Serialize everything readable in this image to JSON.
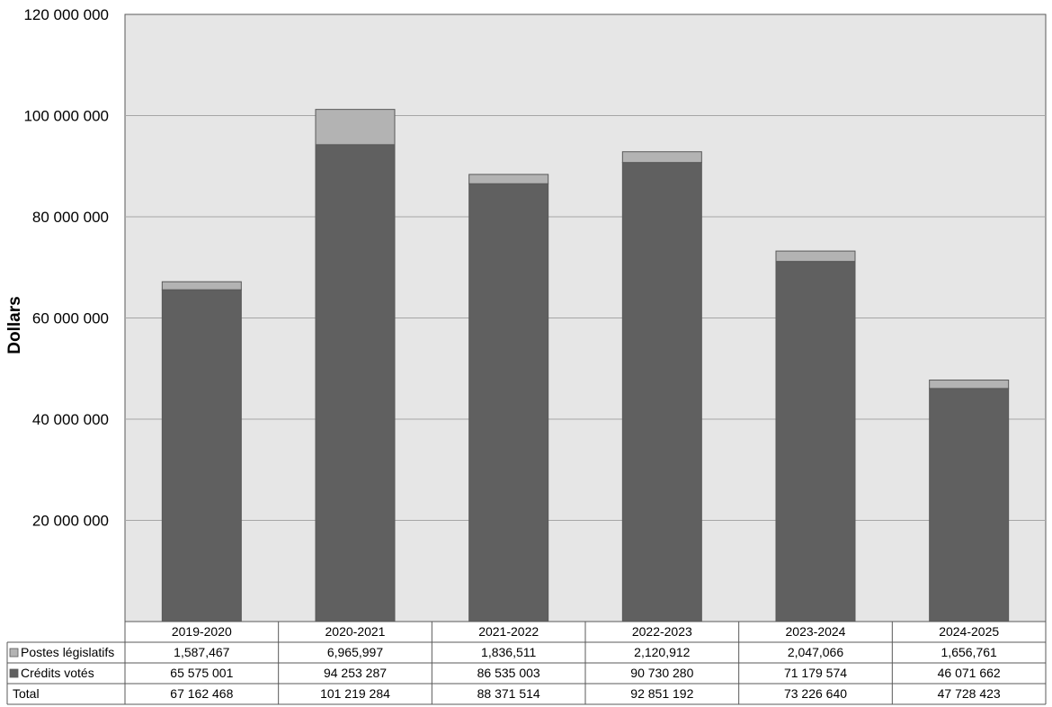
{
  "colors": {
    "plot_background": "#e6e6e6",
    "gridline": "#a6a6a6",
    "statutory": "#b3b3b3",
    "voted": "#606060",
    "border": "#595959"
  },
  "chart_data": {
    "type": "bar",
    "stacked": true,
    "categories": [
      "2019-2020",
      "2020-2021",
      "2021-2022",
      "2022-2023",
      "2023-2024",
      "2024-2025"
    ],
    "ylabel": "Dollars",
    "ylim": [
      0,
      120000000
    ],
    "yticks": [
      20000000,
      40000000,
      60000000,
      80000000,
      100000000,
      120000000
    ],
    "ytick_labels": [
      "20 000 000",
      "40 000 000",
      "60 000 000",
      "80 000 000",
      "100 000 000",
      "120 000 000"
    ],
    "grid": true,
    "series": [
      {
        "name": "Crédits votés",
        "color_key": "voted",
        "values": [
          65575001,
          94253287,
          86535003,
          90730280,
          71179574,
          46071662
        ],
        "labels": [
          "65 575 001",
          "94 253 287",
          "86 535 003",
          "90 730 280",
          "71 179 574",
          "46 071 662"
        ]
      },
      {
        "name": "Postes législatifs",
        "color_key": "statutory",
        "values": [
          1587467,
          6965997,
          1836511,
          2120912,
          2047066,
          1656761
        ],
        "labels": [
          "1,587,467",
          "6,965,997",
          "1,836,511",
          "2,120,912",
          "2,047,066",
          "1,656,761"
        ]
      }
    ],
    "total": {
      "name": "Total",
      "values": [
        67162468,
        101219284,
        88371514,
        92851192,
        73226640,
        47728423
      ],
      "labels": [
        "67 162 468",
        "101 219 284",
        "88 371 514",
        "92 851 192",
        "73 226 640",
        "47 728 423"
      ]
    },
    "table_row_order": [
      "Postes législatifs",
      "Crédits votés",
      "Total"
    ]
  }
}
